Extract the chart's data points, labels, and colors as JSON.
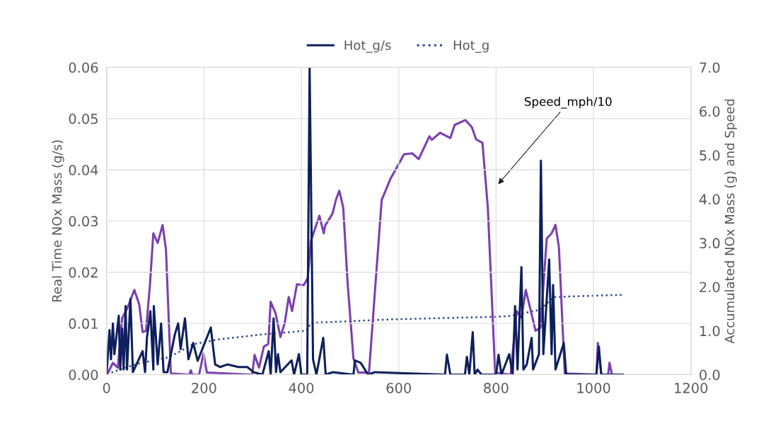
{
  "chart_data": {
    "type": "line",
    "ylabel": "Real Time NOx Mass (g/s)",
    "y2label": "Accumulated NOx Mass (g) and Speed",
    "xlim": [
      0,
      1200
    ],
    "xticks": [
      0,
      200,
      400,
      600,
      800,
      1000,
      1200
    ],
    "ylim": [
      0,
      0.06
    ],
    "yticks": [
      {
        "value": 0,
        "label": "0.00"
      },
      {
        "value": 0.01,
        "label": "0.01"
      },
      {
        "value": 0.02,
        "label": "0.02"
      },
      {
        "value": 0.03,
        "label": "0.03"
      },
      {
        "value": 0.04,
        "label": "0.04"
      },
      {
        "value": 0.05,
        "label": "0.05"
      },
      {
        "value": 0.06,
        "label": "0.06"
      }
    ],
    "y2lim": [
      0,
      7
    ],
    "y2ticks": [
      {
        "value": 0,
        "label": "0.0"
      },
      {
        "value": 1,
        "label": "1.0"
      },
      {
        "value": 2,
        "label": "2.0"
      },
      {
        "value": 3,
        "label": "3.0"
      },
      {
        "value": 4,
        "label": "4.0"
      },
      {
        "value": 5,
        "label": "5.0"
      },
      {
        "value": 6,
        "label": "6.0"
      },
      {
        "value": 7,
        "label": "7.0"
      }
    ],
    "grid": true,
    "legend": "top",
    "annotations": [
      "Speed_mph/10"
    ],
    "series": [
      {
        "name": "Hot_g/s",
        "color": "#0d1f5c",
        "line_style": "solid",
        "x": [
          0,
          6,
          9,
          13,
          16,
          25,
          28,
          32,
          35,
          39,
          42,
          49,
          54,
          74,
          79,
          83,
          90,
          96,
          97,
          105,
          112,
          117,
          125,
          140,
          147,
          152,
          161,
          168,
          178,
          187,
          214,
          223,
          233,
          248,
          271,
          289,
          302,
          320,
          333,
          337,
          343,
          348,
          352,
          357,
          380,
          385,
          395,
          400,
          412,
          417,
          424,
          431,
          445,
          450,
          465,
          507,
          510,
          522,
          537,
          551,
          695,
          699,
          706,
          736,
          740,
          745,
          752,
          756,
          762,
          770,
          778,
          800,
          805,
          811,
          827,
          834,
          839,
          844,
          852,
          856,
          863,
          873,
          876,
          888,
          892,
          897,
          909,
          914,
          917,
          922,
          939,
          944,
          1006,
          1011,
          1016,
          1060
        ],
        "values": [
          0,
          0.0087,
          0.003,
          0.01,
          0.004,
          0.0115,
          0.001,
          0.009,
          0.001,
          0.0134,
          0.001,
          0.0148,
          0.0005,
          0.0046,
          0.0005,
          0.0073,
          0.0124,
          0.001,
          0.0134,
          0.002,
          0.01,
          0.0005,
          0.0005,
          0.0078,
          0.01,
          0.005,
          0.011,
          0.003,
          0.0062,
          0.0027,
          0.0092,
          0.002,
          0.0015,
          0.002,
          0.0015,
          0.0015,
          0.0005,
          0,
          0.0046,
          0,
          0.011,
          0.0005,
          0.004,
          0.0005,
          0.0028,
          0,
          0.004,
          0,
          0,
          0.06,
          0.003,
          0,
          0.0072,
          0,
          0.0005,
          0,
          0.0028,
          0.0023,
          0,
          0.0005,
          0,
          0.0039,
          0,
          0,
          0.0035,
          0,
          0.0083,
          0,
          0.001,
          0,
          0,
          0,
          0.0039,
          0,
          0.004,
          0,
          0.0134,
          0.001,
          0.021,
          0.001,
          0.002,
          0.0072,
          0.001,
          0.004,
          0.0418,
          0.004,
          0.0225,
          0.004,
          0.0175,
          0.001,
          0.0062,
          0,
          0,
          0.0055,
          0,
          0
        ]
      },
      {
        "name": "Hot_g",
        "color": "#2e4a8c",
        "line_style": "dotted",
        "axis": "y2",
        "x": [
          10,
          61,
          129,
          177,
          227,
          323,
          410,
          420,
          584,
          802,
          831,
          890,
          919,
          1060
        ],
        "values": [
          0.05,
          0.24,
          0.4,
          0.69,
          0.8,
          0.92,
          1.0,
          1.18,
          1.26,
          1.32,
          1.34,
          1.48,
          1.77,
          1.82
        ]
      },
      {
        "color": "#7b3fb0",
        "line_style": "solid",
        "axis": "y2",
        "x": [
          1,
          13,
          23,
          32,
          42,
          57,
          67,
          74,
          81,
          89,
          96,
          105,
          115,
          122,
          132,
          170,
          173,
          176,
          190,
          199,
          206,
          299,
          304,
          313,
          323,
          332,
          337,
          347,
          357,
          366,
          374,
          381,
          391,
          405,
          413,
          420,
          437,
          446,
          449,
          464,
          471,
          478,
          486,
          495,
          507,
          517,
          539,
          551,
          565,
          583,
          599,
          611,
          628,
          641,
          663,
          668,
          685,
          706,
          715,
          737,
          750,
          759,
          772,
          783,
          798,
          830,
          842,
          852,
          861,
          881,
          891,
          904,
          914,
          922,
          929,
          941,
          1006,
          1009,
          1016,
          1030,
          1033,
          1038,
          1060
        ],
        "values": [
          0,
          0.27,
          0.16,
          1.29,
          1.5,
          1.93,
          1.6,
          0.97,
          1.0,
          2.04,
          3.22,
          3.0,
          3.41,
          2.85,
          0.03,
          0,
          0.1,
          0,
          0,
          0.48,
          0.05,
          0,
          0.45,
          0.16,
          0.64,
          0.7,
          1.66,
          1.4,
          0.86,
          1.18,
          1.77,
          1.45,
          2.06,
          2.04,
          2.2,
          3.06,
          3.62,
          3.22,
          3.4,
          3.67,
          3.98,
          4.19,
          3.81,
          2.09,
          0.37,
          0.05,
          0.05,
          1.88,
          3.98,
          4.46,
          4.78,
          5.02,
          5.04,
          4.91,
          5.43,
          5.35,
          5.51,
          5.39,
          5.69,
          5.8,
          5.64,
          5.36,
          5.28,
          3.81,
          0.05,
          0,
          1.45,
          1.3,
          1.93,
          1.0,
          1.07,
          3.1,
          3.22,
          3.41,
          2.9,
          0.03,
          0,
          0.72,
          0,
          0,
          0.27,
          0,
          0
        ]
      }
    ]
  }
}
